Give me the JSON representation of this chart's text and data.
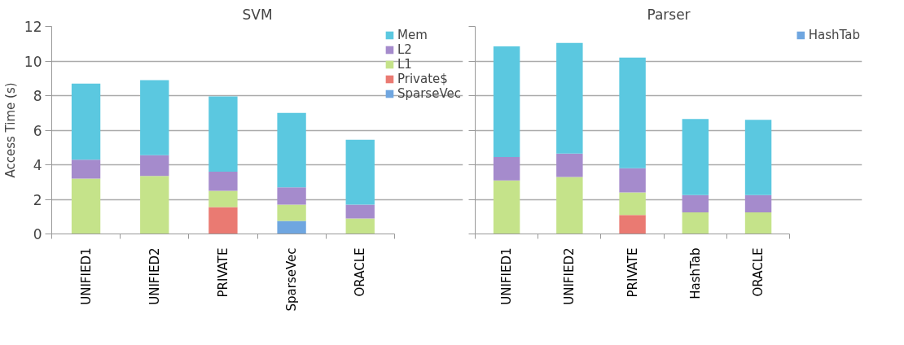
{
  "chart_data": [
    {
      "type": "bar",
      "stacked": true,
      "title": "SVM",
      "ylabel": "Access Time (s)",
      "categories": [
        "UNIFIED1",
        "UNIFIED2",
        "PRIVATE",
        "SparseVec",
        "ORACLE"
      ],
      "series": [
        {
          "name": "SparseVec",
          "color": "#6fa6e0",
          "values": [
            0,
            0,
            0,
            0.75,
            0
          ]
        },
        {
          "name": "Private$",
          "color": "#ea7a72",
          "values": [
            0,
            0,
            1.55,
            0,
            0
          ]
        },
        {
          "name": "L1",
          "color": "#c5e38a",
          "values": [
            3.2,
            3.35,
            0.95,
            0.95,
            0.9
          ]
        },
        {
          "name": "L2",
          "color": "#a58bcc",
          "values": [
            1.1,
            1.2,
            1.1,
            1.0,
            0.8
          ]
        },
        {
          "name": "Mem",
          "color": "#5bc8e0",
          "values": [
            4.4,
            4.35,
            4.35,
            4.3,
            3.75
          ]
        }
      ],
      "ylim": [
        0,
        12
      ],
      "yticks": [
        0,
        2,
        4,
        6,
        8,
        10,
        12
      ],
      "grid": "y",
      "legend": "right"
    },
    {
      "type": "bar",
      "stacked": true,
      "title": "Parser",
      "categories": [
        "UNIFIED1",
        "UNIFIED2",
        "PRIVATE",
        "HashTab",
        "ORACLE"
      ],
      "series": [
        {
          "name": "HashTab",
          "color": "#6fa6e0",
          "values": [
            0,
            0,
            0,
            0,
            0
          ]
        },
        {
          "color": "#ea7a72",
          "values": [
            0,
            0,
            1.1,
            0,
            0
          ]
        },
        {
          "color": "#c5e38a",
          "values": [
            3.1,
            3.3,
            1.3,
            1.25,
            1.25
          ]
        },
        {
          "color": "#a58bcc",
          "values": [
            1.35,
            1.35,
            1.4,
            1.0,
            1.0
          ]
        },
        {
          "color": "#5bc8e0",
          "values": [
            6.4,
            6.4,
            6.4,
            4.4,
            4.35
          ]
        }
      ],
      "ylim": [
        0,
        12
      ],
      "yticks": [
        0,
        2,
        4,
        6,
        8,
        10,
        12
      ],
      "grid": "y",
      "legend": "right",
      "tick_labels": "x"
    }
  ]
}
